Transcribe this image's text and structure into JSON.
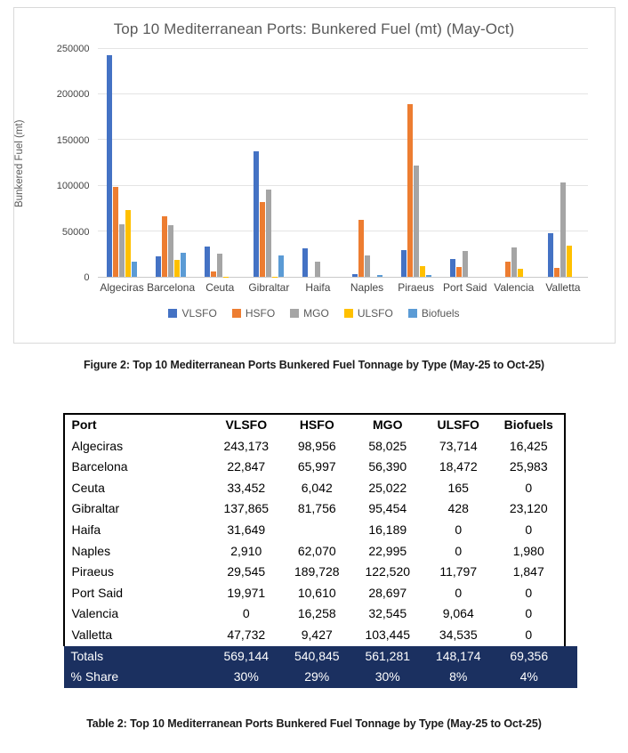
{
  "chart": {
    "title": "Top 10 Mediterranean Ports: Bunkered Fuel (mt) (May-Oct)",
    "ylabel": "Bunkered Fuel (mt)"
  },
  "chart_data": {
    "type": "bar",
    "title": "Top 10 Mediterranean Ports: Bunkered Fuel (mt) (May-Oct)",
    "xlabel": "",
    "ylabel": "Bunkered Fuel (mt)",
    "ylim": [
      0,
      250000
    ],
    "ytick_step": 50000,
    "yticks": [
      0,
      50000,
      100000,
      150000,
      200000,
      250000
    ],
    "grid": true,
    "legend_position": "bottom",
    "categories": [
      "Algeciras",
      "Barcelona",
      "Ceuta",
      "Gibraltar",
      "Haifa",
      "Naples",
      "Piraeus",
      "Port Said",
      "Valencia",
      "Valletta"
    ],
    "series": [
      {
        "name": "VLSFO",
        "color": "#4472C4",
        "values": [
          243173,
          22847,
          33452,
          137865,
          31649,
          2910,
          29545,
          19971,
          0,
          47732
        ]
      },
      {
        "name": "HSFO",
        "color": "#ED7D31",
        "values": [
          98956,
          65997,
          6042,
          81756,
          0,
          62070,
          189728,
          10610,
          16258,
          9427
        ]
      },
      {
        "name": "MGO",
        "color": "#A5A5A5",
        "values": [
          58025,
          56390,
          25022,
          95454,
          16189,
          22995,
          122520,
          28697,
          32545,
          103445
        ]
      },
      {
        "name": "ULSFO",
        "color": "#FFC000",
        "values": [
          73714,
          18472,
          165,
          428,
          0,
          0,
          11797,
          0,
          9064,
          34535
        ]
      },
      {
        "name": "Biofuels",
        "color": "#5B9BD5",
        "values": [
          16425,
          25983,
          0,
          23120,
          0,
          1980,
          1847,
          0,
          0,
          0
        ]
      }
    ]
  },
  "figure_caption": "Figure 2: Top 10 Mediterranean Ports Bunkered Fuel Tonnage by Type (May-25 to Oct-25)",
  "table": {
    "columns": [
      "Port",
      "VLSFO",
      "HSFO",
      "MGO",
      "ULSFO",
      "Biofuels"
    ],
    "rows": [
      [
        "Algeciras",
        "243,173",
        "98,956",
        "58,025",
        "73,714",
        "16,425"
      ],
      [
        "Barcelona",
        "22,847",
        "65,997",
        "56,390",
        "18,472",
        "25,983"
      ],
      [
        "Ceuta",
        "33,452",
        "6,042",
        "25,022",
        "165",
        "0"
      ],
      [
        "Gibraltar",
        "137,865",
        "81,756",
        "95,454",
        "428",
        "23,120"
      ],
      [
        "Haifa",
        "31,649",
        "",
        "16,189",
        "0",
        "0"
      ],
      [
        "Naples",
        "2,910",
        "62,070",
        "22,995",
        "0",
        "1,980"
      ],
      [
        "Piraeus",
        "29,545",
        "189,728",
        "122,520",
        "11,797",
        "1,847"
      ],
      [
        "Port Said",
        "19,971",
        "10,610",
        "28,697",
        "0",
        "0"
      ],
      [
        "Valencia",
        "0",
        "16,258",
        "32,545",
        "9,064",
        "0"
      ],
      [
        "Valletta",
        "47,732",
        "9,427",
        "103,445",
        "34,535",
        "0"
      ]
    ],
    "footer_rows": [
      [
        "Totals",
        "569,144",
        "540,845",
        "561,281",
        "148,174",
        "69,356"
      ],
      [
        "% Share",
        "30%",
        "29%",
        "30%",
        "8%",
        "4%"
      ]
    ],
    "footer_bg": "#1B3060"
  },
  "table_caption": "Table 2: Top 10 Mediterranean Ports Bunkered Fuel Tonnage by Type (May-25 to Oct-25)"
}
